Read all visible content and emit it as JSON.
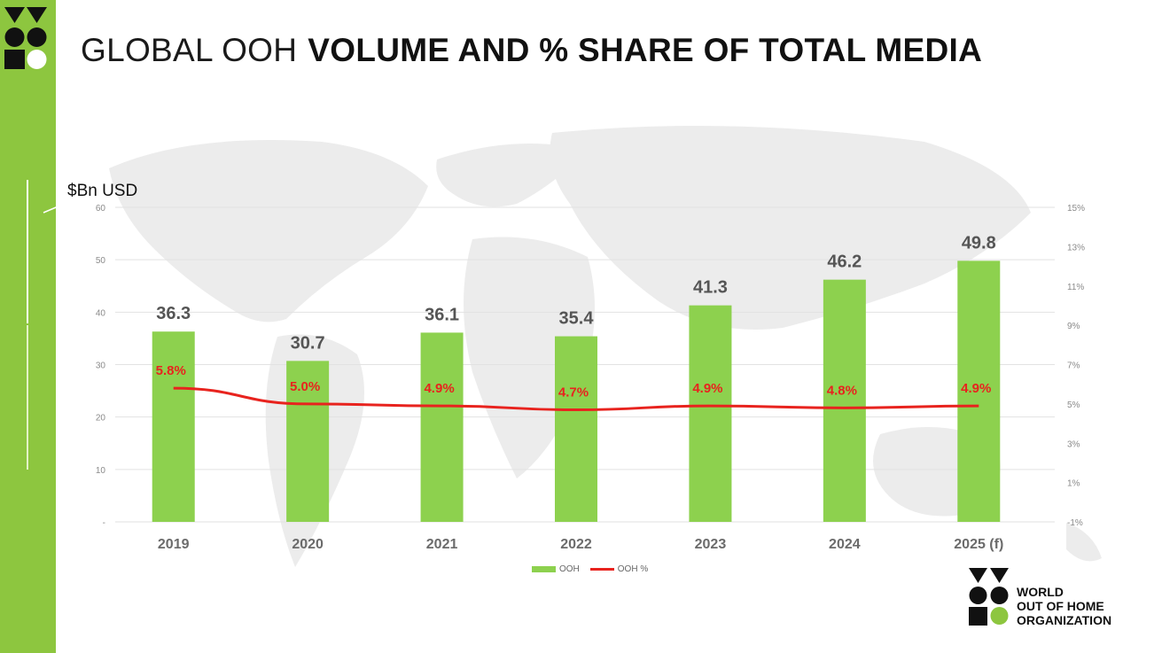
{
  "title": {
    "light": "GLOBAL OOH",
    "bold": "VOLUME AND % SHARE OF TOTAL MEDIA"
  },
  "unit_label": "$Bn USD",
  "brand": {
    "line1": "WORLD",
    "line2": "OUT OF HOME",
    "line3": "ORGANIZATION"
  },
  "colors": {
    "sidebar": "#8dc63f",
    "bar": "#8dd14e",
    "line": "#e8231e"
  },
  "chart_data": {
    "type": "bar",
    "categories": [
      "2019",
      "2020",
      "2021",
      "2022",
      "2023",
      "2024",
      "2025 (f)"
    ],
    "series": [
      {
        "name": "OOH",
        "type": "bar",
        "axis": "left",
        "values": [
          36.3,
          30.7,
          36.1,
          35.4,
          41.3,
          46.2,
          49.8
        ],
        "labels": [
          "36.3",
          "30.7",
          "36.1",
          "35.4",
          "41.3",
          "46.2",
          "49.8"
        ]
      },
      {
        "name": "OOH %",
        "type": "line",
        "axis": "right",
        "values": [
          5.8,
          5.0,
          4.9,
          4.7,
          4.9,
          4.8,
          4.9
        ],
        "labels": [
          "5.8%",
          "5.0%",
          "4.9%",
          "4.7%",
          "4.9%",
          "4.8%",
          "4.9%"
        ]
      }
    ],
    "ylim": [
      0,
      60
    ],
    "y_ticks": [
      "-",
      "10",
      "20",
      "30",
      "40",
      "50",
      "60"
    ],
    "y2lim": [
      -1,
      15
    ],
    "y2_ticks": [
      "-1%",
      "1%",
      "3%",
      "5%",
      "7%",
      "9%",
      "11%",
      "13%",
      "15%"
    ],
    "grid": true,
    "legend_position": "bottom"
  }
}
